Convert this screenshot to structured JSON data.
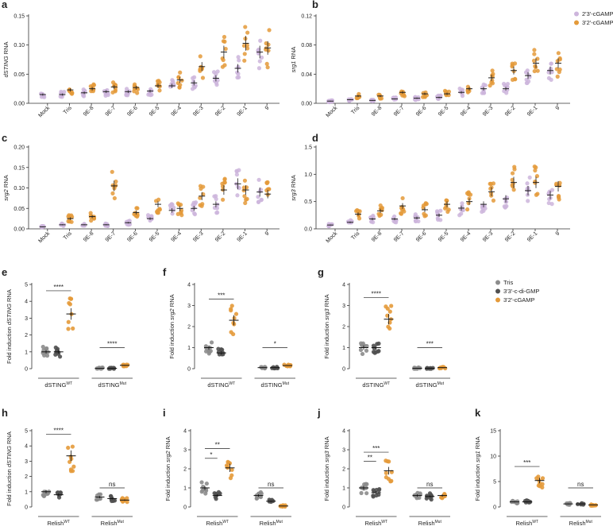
{
  "colors": {
    "purple": "#cdb5dc",
    "orange": "#e49a3a",
    "grey": "#8c8c8c",
    "darkgrey": "#505050",
    "axis": "#333333"
  },
  "legends": {
    "top": [
      {
        "label": "2'3'-cGAMP",
        "color": "#cdb5dc"
      },
      {
        "label": "3'2'-cGAMP",
        "color": "#e49a3a"
      }
    ],
    "bottom": [
      {
        "label": "Tris",
        "color": "#8c8c8c"
      },
      {
        "label": "3'3'-c-di-GMP",
        "color": "#505050"
      },
      {
        "label": "3'2'-cGAMP",
        "color": "#e49a3a"
      }
    ]
  },
  "chart_data": [
    {
      "id": "a",
      "type": "scatter",
      "letter": "a",
      "ylabel_italic": "dSTING",
      "ylabel_rest": " RNA",
      "ylim": [
        0,
        0.15
      ],
      "yticks": [
        "0.00",
        "0.05",
        "0.10",
        "0.15"
      ],
      "ytick_values": [
        0,
        0.05,
        0.1,
        0.15
      ],
      "categories": [
        "Mock",
        "Tris",
        "9E-8",
        "9E-7",
        "9E-6",
        "9E-5",
        "9E-4",
        "9E-3",
        "9E-2",
        "9E-1",
        "9"
      ],
      "series": [
        {
          "name": "2'3'-cGAMP",
          "color": "purple",
          "means": [
            0.015,
            0.015,
            0.018,
            0.02,
            0.02,
            0.021,
            0.03,
            0.035,
            0.043,
            0.06,
            0.088
          ]
        },
        {
          "name": "3'2'-cGAMP",
          "color": "orange",
          "means": [
            null,
            0.023,
            0.025,
            0.028,
            0.027,
            0.03,
            0.04,
            0.063,
            0.088,
            0.103,
            0.095
          ]
        }
      ]
    },
    {
      "id": "b",
      "type": "scatter",
      "letter": "b",
      "ylabel_italic": "srg1",
      "ylabel_rest": " RNA",
      "ylim": [
        0,
        0.12
      ],
      "yticks": [
        "0.00",
        "0.04",
        "0.08",
        "0.12"
      ],
      "ytick_values": [
        0,
        0.04,
        0.08,
        0.12
      ],
      "categories": [
        "Mock",
        "Tris",
        "9E-8",
        "9E-7",
        "9E-6",
        "9E-5",
        "9E-4",
        "9E-3",
        "9E-2",
        "9E-1",
        "9"
      ],
      "series": [
        {
          "name": "2'3'-cGAMP",
          "color": "purple",
          "means": [
            0.003,
            0.005,
            0.004,
            0.006,
            0.007,
            0.008,
            0.015,
            0.02,
            0.02,
            0.038,
            0.045
          ]
        },
        {
          "name": "3'2'-cGAMP",
          "color": "orange",
          "means": [
            null,
            0.01,
            0.01,
            0.015,
            0.013,
            0.013,
            0.02,
            0.035,
            0.045,
            0.055,
            0.055
          ]
        }
      ]
    },
    {
      "id": "c",
      "type": "scatter",
      "letter": "c",
      "ylabel_italic": "srg2",
      "ylabel_rest": " RNA",
      "ylim": [
        0,
        0.2
      ],
      "yticks": [
        "0.00",
        "0.05",
        "0.10",
        "0.15",
        "0.20"
      ],
      "ytick_values": [
        0,
        0.05,
        0.1,
        0.15,
        0.2
      ],
      "categories": [
        "Mock",
        "Tris",
        "9E-8",
        "9E-7",
        "9E-6",
        "9E-5",
        "9E-4",
        "9E-3",
        "9E-2",
        "9E-1",
        "9"
      ],
      "series": [
        {
          "name": "2'3'-cGAMP",
          "color": "purple",
          "means": [
            0.005,
            0.01,
            0.01,
            0.01,
            0.015,
            0.025,
            0.045,
            0.05,
            0.06,
            0.11,
            0.09
          ]
        },
        {
          "name": "3'2'-cGAMP",
          "color": "orange",
          "means": [
            null,
            0.025,
            0.03,
            0.105,
            0.04,
            0.06,
            0.05,
            0.08,
            0.095,
            0.095,
            0.085
          ]
        }
      ]
    },
    {
      "id": "d",
      "type": "scatter",
      "letter": "d",
      "ylabel_italic": "srg3",
      "ylabel_rest": " RNA",
      "ylim": [
        0,
        1.5
      ],
      "yticks": [
        "0.0",
        "0.5",
        "1.0",
        "1.5"
      ],
      "ytick_values": [
        0,
        0.5,
        1.0,
        1.5
      ],
      "categories": [
        "Mock",
        "Tris",
        "9E-8",
        "9E-7",
        "9E-6",
        "9E-5",
        "9E-4",
        "9E-3",
        "9E-2",
        "9E-1",
        "9"
      ],
      "series": [
        {
          "name": "2'3'-cGAMP",
          "color": "purple",
          "means": [
            0.07,
            0.12,
            0.18,
            0.18,
            0.2,
            0.25,
            0.38,
            0.45,
            0.55,
            0.7,
            0.62
          ]
        },
        {
          "name": "3'2'-cGAMP",
          "color": "orange",
          "means": [
            null,
            0.27,
            0.33,
            0.42,
            0.35,
            0.45,
            0.5,
            0.68,
            0.85,
            0.85,
            0.78
          ]
        }
      ]
    },
    {
      "id": "e",
      "type": "scatter",
      "letter": "e",
      "ylabel_pre": "Fold induction ",
      "ylabel_italic": "dSTING",
      "ylabel_rest": " RNA",
      "ylim": [
        0,
        5
      ],
      "yticks": [
        "0",
        "1",
        "2",
        "3",
        "4",
        "5"
      ],
      "ytick_values": [
        0,
        1,
        2,
        3,
        4,
        5
      ],
      "groups": [
        {
          "base": "dSTING",
          "sup": "WT"
        },
        {
          "base": "dSTING",
          "sup": "Mut"
        }
      ],
      "means": [
        [
          1.0,
          1.0,
          3.25
        ],
        [
          0.02,
          0.02,
          0.2
        ]
      ],
      "brackets": [
        {
          "group": 0,
          "label": "****"
        },
        {
          "group": 1,
          "label": "****"
        }
      ]
    },
    {
      "id": "f",
      "type": "scatter",
      "letter": "f",
      "ylabel_pre": "Fold induction ",
      "ylabel_italic": "srg2",
      "ylabel_rest": " RNA",
      "ylim": [
        0,
        4
      ],
      "yticks": [
        "0",
        "1",
        "2",
        "3",
        "4"
      ],
      "ytick_values": [
        0,
        1,
        2,
        3,
        4
      ],
      "groups": [
        {
          "base": "dSTING",
          "sup": "WT"
        },
        {
          "base": "dSTING",
          "sup": "Mut"
        }
      ],
      "means": [
        [
          1.0,
          0.75,
          2.3
        ],
        [
          0.05,
          0.05,
          0.15
        ]
      ],
      "brackets": [
        {
          "group": 0,
          "label": "***"
        },
        {
          "group": 1,
          "label": "*"
        }
      ]
    },
    {
      "id": "g",
      "type": "scatter",
      "letter": "g",
      "ylabel_pre": "Fold induction ",
      "ylabel_italic": "srg3",
      "ylabel_rest": " RNA",
      "ylim": [
        0,
        4
      ],
      "yticks": [
        "0",
        "1",
        "2",
        "3",
        "4"
      ],
      "ytick_values": [
        0,
        1,
        2,
        3,
        4
      ],
      "groups": [
        {
          "base": "dSTING",
          "sup": "WT"
        },
        {
          "base": "dSTING",
          "sup": "Mut"
        }
      ],
      "means": [
        [
          1.0,
          1.0,
          2.35
        ],
        [
          0.02,
          0.02,
          0.05
        ]
      ],
      "brackets": [
        {
          "group": 0,
          "label": "****"
        },
        {
          "group": 1,
          "label": "***"
        }
      ]
    },
    {
      "id": "h",
      "type": "scatter",
      "letter": "h",
      "ylabel_pre": "Fold induction ",
      "ylabel_italic": "dSTING",
      "ylabel_rest": " RNA",
      "ylim": [
        0,
        5
      ],
      "yticks": [
        "0",
        "1",
        "2",
        "3",
        "4",
        "5"
      ],
      "ytick_values": [
        0,
        1,
        2,
        3,
        4,
        5
      ],
      "groups": [
        {
          "base": "Relish",
          "sup": "WT"
        },
        {
          "base": "Relish",
          "sup": "Mut"
        }
      ],
      "means": [
        [
          1.0,
          0.8,
          3.35
        ],
        [
          0.65,
          0.55,
          0.45
        ]
      ],
      "brackets": [
        {
          "group": 0,
          "label": "****"
        },
        {
          "group": 1,
          "label": "ns"
        }
      ]
    },
    {
      "id": "i",
      "type": "scatter",
      "letter": "i",
      "ylabel_pre": "Fold induction ",
      "ylabel_italic": "srg2",
      "ylabel_rest": " RNA",
      "ylim": [
        0,
        4
      ],
      "yticks": [
        "0",
        "1",
        "2",
        "3",
        "4"
      ],
      "ytick_values": [
        0,
        1,
        2,
        3,
        4
      ],
      "groups": [
        {
          "base": "Relish",
          "sup": "WT"
        },
        {
          "base": "Relish",
          "sup": "Mut"
        }
      ],
      "means": [
        [
          1.0,
          0.6,
          2.05
        ],
        [
          0.6,
          0.3,
          0.05
        ]
      ],
      "brackets": [
        {
          "group": 0,
          "label": "*",
          "pair": "12"
        },
        {
          "group": 0,
          "label": "**"
        },
        {
          "group": 1,
          "label": "ns"
        }
      ]
    },
    {
      "id": "j",
      "type": "scatter",
      "letter": "j",
      "ylabel_pre": "Fold induction ",
      "ylabel_italic": "srg3",
      "ylabel_rest": " RNA",
      "ylim": [
        0,
        4
      ],
      "yticks": [
        "0",
        "1",
        "2",
        "3",
        "4"
      ],
      "ytick_values": [
        0,
        1,
        2,
        3,
        4
      ],
      "groups": [
        {
          "base": "Relish",
          "sup": "WT"
        },
        {
          "base": "Relish",
          "sup": "Mut"
        }
      ],
      "means": [
        [
          1.0,
          0.75,
          1.9
        ],
        [
          0.6,
          0.55,
          0.6
        ]
      ],
      "brackets": [
        {
          "group": 0,
          "label": "**",
          "pair": "12"
        },
        {
          "group": 0,
          "label": "***"
        },
        {
          "group": 1,
          "label": "ns"
        }
      ]
    },
    {
      "id": "k",
      "type": "scatter",
      "letter": "k",
      "ylabel_pre": "Fold induction ",
      "ylabel_italic": "srg1",
      "ylabel_rest": " RNA",
      "ylim": [
        0,
        15
      ],
      "yticks": [
        "0",
        "5",
        "10",
        "15"
      ],
      "ytick_values": [
        0,
        5,
        10,
        15
      ],
      "groups": [
        {
          "base": "Relish",
          "sup": "WT"
        },
        {
          "base": "Relish",
          "sup": "Mut"
        }
      ],
      "means": [
        [
          1.0,
          1.0,
          5.2
        ],
        [
          0.6,
          0.6,
          0.4
        ]
      ],
      "brackets": [
        {
          "group": 0,
          "label": "***"
        },
        {
          "group": 1,
          "label": "ns"
        }
      ]
    }
  ]
}
